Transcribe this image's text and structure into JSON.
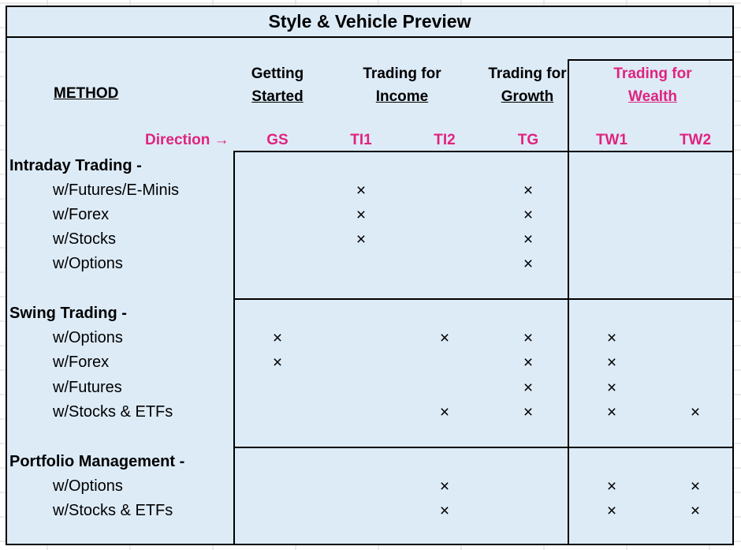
{
  "title": "Style & Vehicle Preview",
  "method_label": "METHOD",
  "direction_label": "Direction →",
  "groups": [
    {
      "line1": "Getting",
      "line2": "Started",
      "pink": false
    },
    {
      "line1": "Trading for",
      "line2": "Income",
      "pink": false
    },
    {
      "line1": "Trading for",
      "line2": "Growth",
      "pink": false
    },
    {
      "line1": "Trading for",
      "line2": "Wealth",
      "pink": true
    }
  ],
  "columns": [
    "GS",
    "TI1",
    "TI2",
    "TG",
    "TW1",
    "TW2"
  ],
  "mark_symbol": "×",
  "sections": [
    {
      "title": "Intraday Trading -",
      "rows": [
        {
          "label": "w/Futures/E-Minis",
          "marks": [
            false,
            true,
            false,
            true,
            false,
            false
          ]
        },
        {
          "label": "w/Forex",
          "marks": [
            false,
            true,
            false,
            true,
            false,
            false
          ]
        },
        {
          "label": "w/Stocks",
          "marks": [
            false,
            true,
            false,
            true,
            false,
            false
          ]
        },
        {
          "label": "w/Options",
          "marks": [
            false,
            false,
            false,
            true,
            false,
            false
          ]
        }
      ]
    },
    {
      "title": "Swing Trading -",
      "rows": [
        {
          "label": "w/Options",
          "marks": [
            true,
            false,
            true,
            true,
            true,
            false
          ]
        },
        {
          "label": "w/Forex",
          "marks": [
            true,
            false,
            false,
            true,
            true,
            false
          ]
        },
        {
          "label": "w/Futures",
          "marks": [
            false,
            false,
            false,
            true,
            true,
            false
          ]
        },
        {
          "label": "w/Stocks & ETFs",
          "marks": [
            false,
            false,
            true,
            true,
            true,
            true
          ]
        }
      ]
    },
    {
      "title": "Portfolio Management -",
      "rows": [
        {
          "label": "w/Options",
          "marks": [
            false,
            false,
            true,
            false,
            true,
            true
          ]
        },
        {
          "label": "w/Stocks & ETFs",
          "marks": [
            false,
            false,
            true,
            false,
            true,
            true
          ]
        }
      ]
    }
  ]
}
